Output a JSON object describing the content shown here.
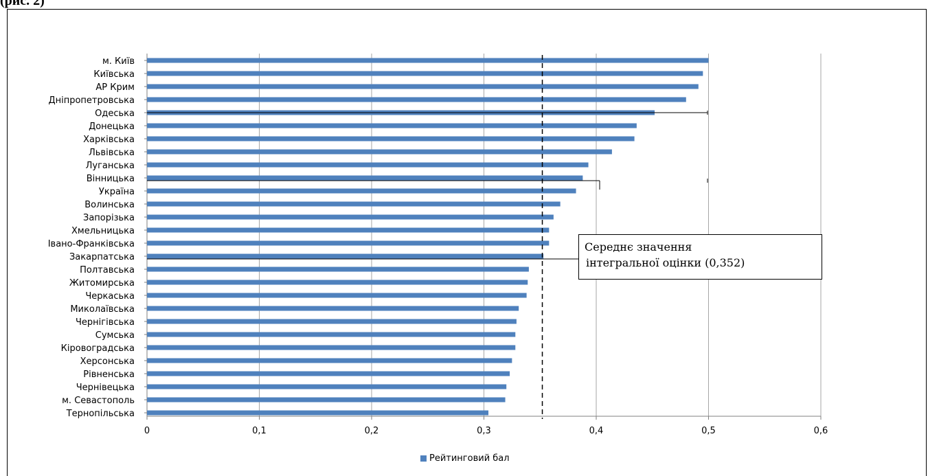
{
  "page_header": "                 (рис. 2)",
  "annotation": {
    "line1": "Середнє значення",
    "line2": "інтегральної оцінки (0,352)"
  },
  "legend": {
    "label": "Рейтинговий бал",
    "color": "#4f81bd"
  },
  "chart_data": {
    "type": "bar",
    "orientation": "horizontal",
    "categories": [
      "м. Київ",
      "Київська",
      "АР Крим",
      "Дніпропетровська",
      "Одеська",
      "Донецька",
      "Харківська",
      "Львівська",
      "Луганська",
      "Вінницька",
      "Україна",
      "Волинська",
      "Запорізька",
      "Хмельницька",
      "Івано-Франківська",
      "Закарпатська",
      "Полтавська",
      "Житомирська",
      "Черкаська",
      "Миколаївська",
      "Чернігівська",
      "Сумська",
      "Кіровоградська",
      "Херсонська",
      "Рівненська",
      "Чернівецька",
      "м. Севастополь",
      "Тернопільська"
    ],
    "series": [
      {
        "name": "Рейтинговий бал",
        "values": [
          0.5,
          0.495,
          0.491,
          0.48,
          0.452,
          0.436,
          0.434,
          0.414,
          0.393,
          0.388,
          0.382,
          0.368,
          0.362,
          0.358,
          0.358,
          0.353,
          0.34,
          0.339,
          0.338,
          0.331,
          0.329,
          0.328,
          0.328,
          0.325,
          0.323,
          0.32,
          0.319,
          0.304
        ]
      }
    ],
    "xlim": [
      0,
      0.6
    ],
    "xticks": [
      0,
      0.1,
      0.2,
      0.3,
      0.4,
      0.5,
      0.6
    ],
    "xtick_labels": [
      "0",
      "0,1",
      "0,2",
      "0,3",
      "0,4",
      "0,5",
      "0,6"
    ],
    "reference_line": {
      "value": 0.352,
      "style": "dashed"
    },
    "bar_color": "#4f81bd",
    "grid": "vertical",
    "legend_position": "bottom"
  }
}
